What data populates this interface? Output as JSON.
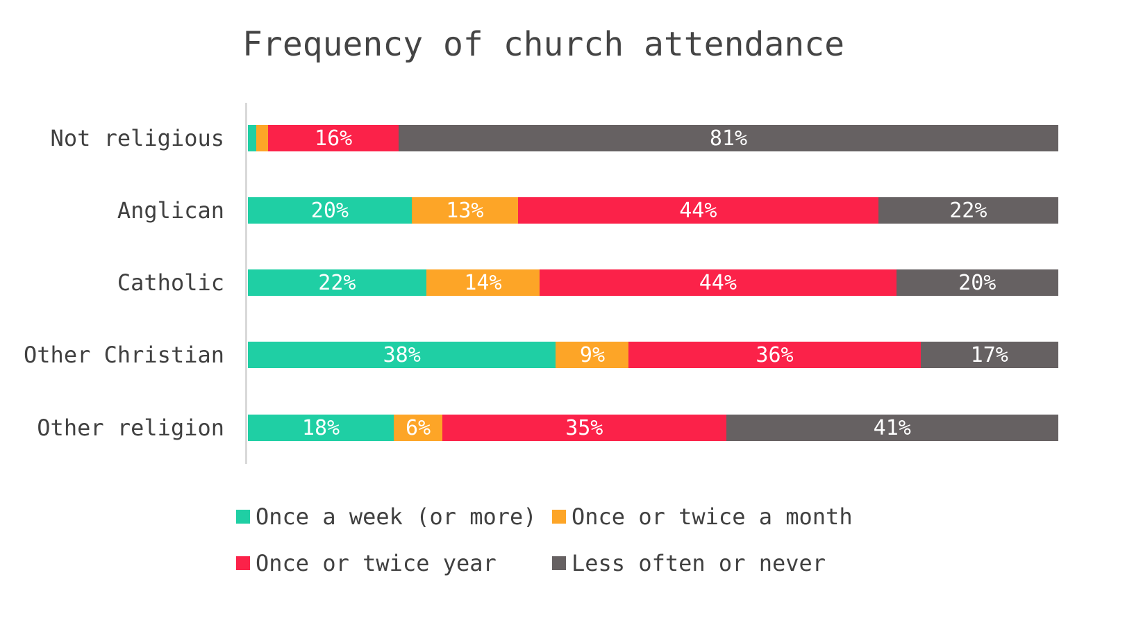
{
  "chart_data": {
    "type": "bar",
    "orientation": "horizontal",
    "stacked": true,
    "title": "Frequency of church attendance",
    "xlabel": "",
    "ylabel": "",
    "xlim": [
      0,
      100
    ],
    "grid": false,
    "legend_position": "bottom",
    "categories": [
      "Not religious",
      "Anglican",
      "Catholic",
      "Other Christian",
      "Other religion"
    ],
    "series": [
      {
        "name": "Once a week (or more)",
        "color": "#1fcfa4",
        "values": [
          1,
          20,
          22,
          38,
          18
        ],
        "labels": [
          "",
          "20%",
          "22%",
          "38%",
          "18%"
        ]
      },
      {
        "name": "Once or twice a month",
        "color": "#fda527",
        "values": [
          1.5,
          13,
          14,
          9,
          6
        ],
        "labels": [
          "",
          "13%",
          "14%",
          "9%",
          "6%"
        ]
      },
      {
        "name": "Once or twice year",
        "color": "#fb2249",
        "values": [
          16,
          44,
          44,
          36,
          35
        ],
        "labels": [
          "16%",
          "44%",
          "44%",
          "36%",
          "35%"
        ]
      },
      {
        "name": "Less often or never",
        "color": "#666162",
        "values": [
          81,
          22,
          20,
          17,
          41
        ],
        "labels": [
          "81%",
          "22%",
          "20%",
          "17%",
          "41%"
        ]
      }
    ]
  }
}
